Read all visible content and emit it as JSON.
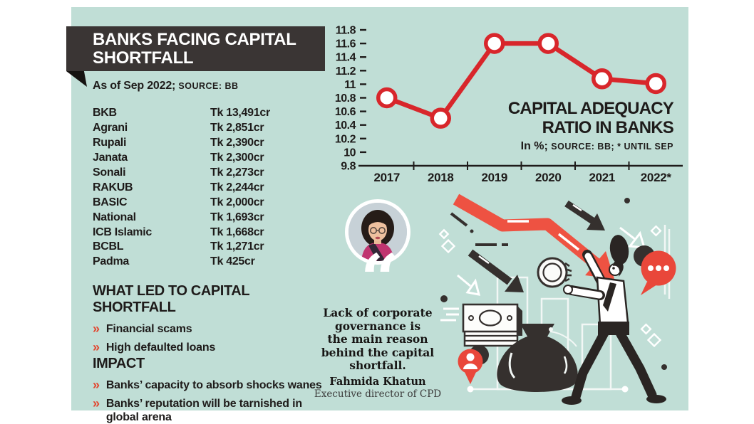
{
  "colors": {
    "card_bg": "#c0ded6",
    "banner_bg": "#3a3534",
    "ink": "#1e1b1a",
    "chart_red": "#d8262b",
    "accent_red": "#e2462f",
    "illustration_red": "#ee5242",
    "illustration_dark": "#35302e"
  },
  "bullet_glyph": "»",
  "header": {
    "title": "BANKS FACING CAPITAL SHORTFALL",
    "as_of": "As of Sep 2022; ",
    "source": "SOURCE: BB"
  },
  "shortfall_table": {
    "rows": [
      {
        "bank": "BKB",
        "amount": "Tk 13,491cr"
      },
      {
        "bank": "Agrani",
        "amount": "Tk 2,851cr"
      },
      {
        "bank": "Rupali",
        "amount": "Tk 2,390cr"
      },
      {
        "bank": "Janata",
        "amount": "Tk 2,300cr"
      },
      {
        "bank": "Sonali",
        "amount": "Tk 2,273cr"
      },
      {
        "bank": "RAKUB",
        "amount": "Tk 2,244cr"
      },
      {
        "bank": "BASIC",
        "amount": "Tk 2,000cr"
      },
      {
        "bank": "National",
        "amount": "Tk 1,693cr"
      },
      {
        "bank": "ICB Islamic",
        "amount": "Tk 1,668cr"
      },
      {
        "bank": "BCBL",
        "amount": "Tk 1,271cr"
      },
      {
        "bank": "Padma",
        "amount": "Tk 425cr"
      }
    ]
  },
  "causes": {
    "heading": "WHAT LED TO CAPITAL SHORTFALL",
    "items": [
      "Financial scams",
      "High defaulted loans"
    ]
  },
  "impact": {
    "heading": "IMPACT",
    "items": [
      "Banks’ capacity to absorb shocks wanes",
      "Banks’ reputation will be tarnished in global arena"
    ]
  },
  "chart": {
    "title_line1": "CAPITAL ADEQUACY",
    "title_line2": "RATIO IN BANKS",
    "subtitle_plain": "In %; ",
    "subtitle_source": "SOURCE: BB; * UNTIL SEP"
  },
  "chart_data": {
    "type": "line",
    "title": "Capital adequacy ratio in banks",
    "unit": "%",
    "x": [
      "2017",
      "2018",
      "2019",
      "2020",
      "2021",
      "2022*"
    ],
    "values": [
      10.8,
      10.5,
      11.6,
      11.6,
      11.08,
      11.01
    ],
    "ylim": [
      9.8,
      11.8
    ],
    "ytick_step": 0.2,
    "grid": false,
    "legend": "none",
    "line_color": "#d8262b",
    "marker": "open-circle"
  },
  "quote": {
    "mark": "“",
    "text": "Lack of corporate\ngovernance is\nthe main reason\nbehind the capital\nshortfall.",
    "author": "Fahmida Khatun",
    "author_title": "Executive director of CPD"
  }
}
